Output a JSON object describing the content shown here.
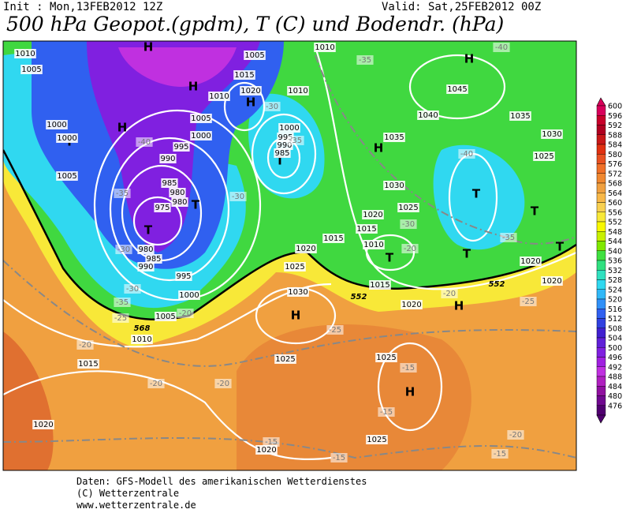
{
  "header": {
    "init": "Init : Mon,13FEB2012 12Z",
    "valid": "Valid: Sat,25FEB2012 00Z",
    "title": "500 hPa Geopot.(gpdm), T (C) und Bodendr. (hPa)"
  },
  "legend": {
    "values": [
      600,
      596,
      592,
      588,
      584,
      580,
      576,
      572,
      568,
      564,
      560,
      556,
      552,
      548,
      544,
      540,
      536,
      532,
      528,
      524,
      520,
      516,
      512,
      508,
      504,
      500,
      496,
      492,
      488,
      484,
      480,
      476
    ],
    "colors": [
      "#d8005a",
      "#c8002a",
      "#b00020",
      "#c81818",
      "#e03010",
      "#e85020",
      "#f07028",
      "#f08830",
      "#f0a040",
      "#f8b848",
      "#f8d050",
      "#f8e838",
      "#f8f800",
      "#c8f000",
      "#80e800",
      "#40e040",
      "#30e080",
      "#30e0c0",
      "#30d8f0",
      "#30b8f8",
      "#3090f8",
      "#3060f0",
      "#3040e0",
      "#4020d0",
      "#6020d8",
      "#8020e0",
      "#a020e0",
      "#c030e0",
      "#b020c0",
      "#9010a0",
      "#700890",
      "#500070"
    ]
  },
  "map": {
    "labels": [
      "H",
      "H",
      "H",
      "H",
      "H",
      "H",
      "H",
      "H",
      "H",
      "T",
      "T",
      "T",
      "T",
      "T",
      "T",
      "T",
      "T",
      "T",
      "1010",
      "1005",
      "1010",
      "1005",
      "1015",
      "1020",
      "1010",
      "1010",
      "1000",
      "1000",
      "1005",
      "1000",
      "995",
      "990",
      "1000",
      "995",
      "990",
      "985",
      "980",
      "1005",
      "985",
      "980",
      "975",
      "980",
      "985",
      "990",
      "995",
      "1000",
      "1005",
      "1010",
      "1015",
      "1020",
      "1045",
      "1040",
      "1035",
      "1035",
      "1030",
      "1025",
      "1030",
      "1020",
      "1015",
      "1010",
      "1015",
      "1020",
      "1025",
      "1030",
      "1015",
      "1020",
      "1025",
      "1020",
      "1020",
      "1025",
      "1025",
      "1025",
      "1020",
      "-35",
      "-40",
      "-30",
      "-40",
      "-35",
      "-35",
      "-30",
      "-40",
      "-35",
      "-30",
      "-20",
      "-30",
      "-30",
      "-35",
      "-25",
      "-20",
      "-20",
      "-25",
      "-20",
      "-20",
      "-15",
      "-15",
      "-20",
      "-25",
      "-20",
      "-15",
      "-15",
      "-15",
      "552",
      "552",
      "568"
    ]
  },
  "footer": {
    "lines": [
      "Daten: GFS-Modell des amerikanischen Wetterdienstes",
      "(C) Wetterzentrale",
      "www.wetterzentrale.de"
    ]
  }
}
